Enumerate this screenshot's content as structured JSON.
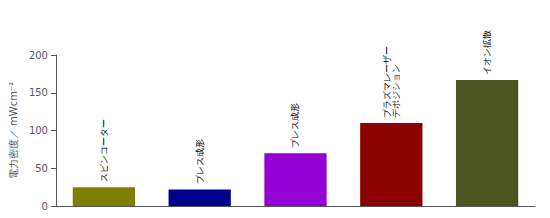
{
  "chart_data": {
    "type": "bar",
    "ylabel": "電力密度／ mWcm⁻²",
    "categories": [
      "スピンコーター",
      "プレス成形",
      "プレス成形",
      "プラズマレーザー\nデポジション",
      "イオン拡散"
    ],
    "values": [
      25,
      22,
      70,
      110,
      167
    ],
    "colors": [
      "#808000",
      "#00008B",
      "#9400D3",
      "#8B0000",
      "#4B5320"
    ],
    "ylim": [
      0,
      200
    ],
    "yticks": [
      0,
      50,
      100,
      150,
      200
    ],
    "grid": false,
    "tick_labels": "y"
  }
}
